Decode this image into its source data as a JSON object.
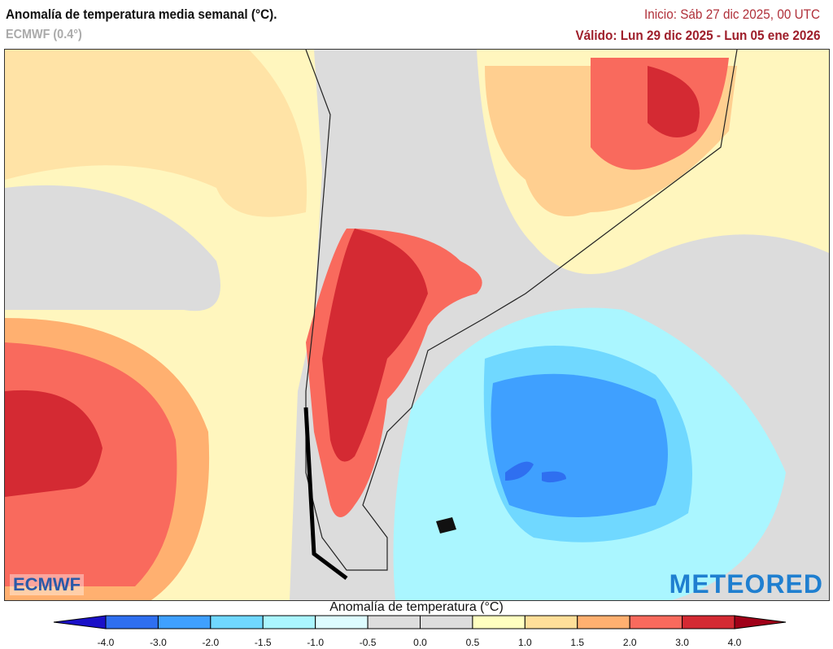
{
  "header": {
    "title": "Anomalía de temperatura media semanal (°C).",
    "model": "ECMWF (0.4°)",
    "init": "Inicio: Sáb 27 dic 2025, 00 UTC",
    "valid": "Válido: Lun 29 dic 2025 - Lun 05 ene 2026"
  },
  "logos": {
    "left": "ECMWF",
    "right": "METEORED"
  },
  "colorbar": {
    "title": "Anomalía de temperatura (°C)",
    "ticks": [
      "-4.0",
      "-3.0",
      "-2.0",
      "-1.5",
      "-1.0",
      "-0.5",
      "0.0",
      "0.5",
      "1.0",
      "1.5",
      "2.0",
      "3.0",
      "4.0"
    ],
    "colors": [
      "#1f3fd6",
      "#2f6ff0",
      "#3fa0ff",
      "#70d8ff",
      "#aaf6ff",
      "#ddfcff",
      "#dddddd",
      "#dddddd",
      "#ffffc0",
      "#ffdf99",
      "#ffb070",
      "#f96a5d",
      "#d42a33"
    ],
    "under_color": "#1a10c8",
    "over_color": "#a00018"
  }
}
